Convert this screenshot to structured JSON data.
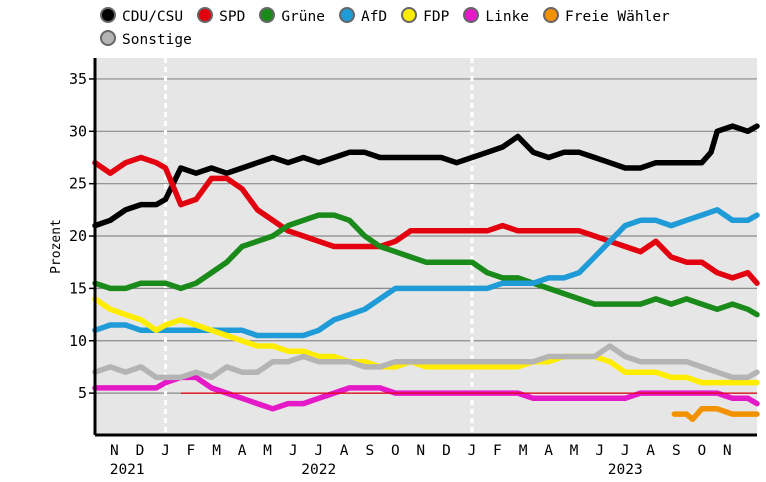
{
  "chart_data": {
    "type": "line",
    "ylabel": "Prozent",
    "ylim": [
      1,
      37
    ],
    "yticks": [
      5,
      10,
      15,
      20,
      25,
      30,
      35
    ],
    "threshold": 5,
    "x_range": [
      2021.77,
      2023.93
    ],
    "months": [
      {
        "label": "N",
        "x": 2021.833
      },
      {
        "label": "D",
        "x": 2021.917
      },
      {
        "label": "J",
        "x": 2022.0
      },
      {
        "label": "F",
        "x": 2022.083
      },
      {
        "label": "M",
        "x": 2022.167
      },
      {
        "label": "A",
        "x": 2022.25
      },
      {
        "label": "M",
        "x": 2022.333
      },
      {
        "label": "J",
        "x": 2022.417
      },
      {
        "label": "J",
        "x": 2022.5
      },
      {
        "label": "A",
        "x": 2022.583
      },
      {
        "label": "S",
        "x": 2022.667
      },
      {
        "label": "O",
        "x": 2022.75
      },
      {
        "label": "N",
        "x": 2022.833
      },
      {
        "label": "D",
        "x": 2022.917
      },
      {
        "label": "J",
        "x": 2023.0
      },
      {
        "label": "F",
        "x": 2023.083
      },
      {
        "label": "M",
        "x": 2023.167
      },
      {
        "label": "A",
        "x": 2023.25
      },
      {
        "label": "M",
        "x": 2023.333
      },
      {
        "label": "J",
        "x": 2023.417
      },
      {
        "label": "J",
        "x": 2023.5
      },
      {
        "label": "A",
        "x": 2023.583
      },
      {
        "label": "S",
        "x": 2023.667
      },
      {
        "label": "O",
        "x": 2023.75
      },
      {
        "label": "N",
        "x": 2023.833
      }
    ],
    "years": [
      {
        "label": "2021",
        "x": 2021.875
      },
      {
        "label": "2022",
        "x": 2022.5
      },
      {
        "label": "2023",
        "x": 2023.5
      }
    ],
    "year_separators": [
      1996.0,
      2022.0,
      2023.0
    ],
    "series": [
      {
        "name": "CDU/CSU",
        "color": "#000000",
        "x": [
          2021.77,
          2021.82,
          2021.87,
          2021.92,
          2021.97,
          2022.0,
          2022.05,
          2022.1,
          2022.15,
          2022.2,
          2022.25,
          2022.3,
          2022.35,
          2022.4,
          2022.45,
          2022.5,
          2022.55,
          2022.6,
          2022.65,
          2022.7,
          2022.75,
          2022.8,
          2022.85,
          2022.9,
          2022.95,
          2023.0,
          2023.05,
          2023.1,
          2023.15,
          2023.2,
          2023.25,
          2023.3,
          2023.35,
          2023.4,
          2023.45,
          2023.5,
          2023.55,
          2023.6,
          2023.65,
          2023.7,
          2023.75,
          2023.78,
          2023.8,
          2023.85,
          2023.9,
          2023.93
        ],
        "values": [
          21,
          21.5,
          22.5,
          23,
          23,
          23.5,
          26.5,
          26,
          26.5,
          26,
          26.5,
          27,
          27.5,
          27,
          27.5,
          27,
          27.5,
          28,
          28,
          27.5,
          27.5,
          27.5,
          27.5,
          27.5,
          27,
          27.5,
          28,
          28.5,
          29.5,
          28,
          27.5,
          28,
          28,
          27.5,
          27,
          26.5,
          26.5,
          27,
          27,
          27,
          27,
          28,
          30,
          30.5,
          30,
          30.5
        ]
      },
      {
        "name": "SPD",
        "color": "#e3000f",
        "x": [
          2021.77,
          2021.82,
          2021.87,
          2021.92,
          2021.97,
          2022.0,
          2022.05,
          2022.1,
          2022.15,
          2022.2,
          2022.25,
          2022.3,
          2022.35,
          2022.4,
          2022.45,
          2022.5,
          2022.55,
          2022.6,
          2022.65,
          2022.7,
          2022.75,
          2022.8,
          2022.85,
          2022.9,
          2022.95,
          2023.0,
          2023.05,
          2023.1,
          2023.15,
          2023.2,
          2023.25,
          2023.3,
          2023.35,
          2023.4,
          2023.45,
          2023.5,
          2023.55,
          2023.6,
          2023.65,
          2023.7,
          2023.75,
          2023.8,
          2023.85,
          2023.9,
          2023.93
        ],
        "values": [
          27,
          26,
          27,
          27.5,
          27,
          26.5,
          23,
          23.5,
          25.5,
          25.5,
          24.5,
          22.5,
          21.5,
          20.5,
          20,
          19.5,
          19,
          19,
          19,
          19,
          19.5,
          20.5,
          20.5,
          20.5,
          20.5,
          20.5,
          20.5,
          21,
          20.5,
          20.5,
          20.5,
          20.5,
          20.5,
          20,
          19.5,
          19,
          18.5,
          19.5,
          18,
          17.5,
          17.5,
          16.5,
          16,
          16.5,
          15.5
        ]
      },
      {
        "name": "Grüne",
        "color": "#1a8a1a",
        "x": [
          2021.77,
          2021.82,
          2021.87,
          2021.92,
          2021.97,
          2022.0,
          2022.05,
          2022.1,
          2022.15,
          2022.2,
          2022.25,
          2022.3,
          2022.35,
          2022.4,
          2022.45,
          2022.5,
          2022.55,
          2022.6,
          2022.65,
          2022.7,
          2022.75,
          2022.8,
          2022.85,
          2022.9,
          2022.95,
          2023.0,
          2023.05,
          2023.1,
          2023.15,
          2023.2,
          2023.25,
          2023.3,
          2023.35,
          2023.4,
          2023.45,
          2023.5,
          2023.55,
          2023.6,
          2023.65,
          2023.7,
          2023.75,
          2023.8,
          2023.85,
          2023.9,
          2023.93
        ],
        "values": [
          15.5,
          15,
          15,
          15.5,
          15.5,
          15.5,
          15,
          15.5,
          16.5,
          17.5,
          19,
          19.5,
          20,
          21,
          21.5,
          22,
          22,
          21.5,
          20,
          19,
          18.5,
          18,
          17.5,
          17.5,
          17.5,
          17.5,
          16.5,
          16,
          16,
          15.5,
          15,
          14.5,
          14,
          13.5,
          13.5,
          13.5,
          13.5,
          14,
          13.5,
          14,
          13.5,
          13,
          13.5,
          13,
          12.5
        ]
      },
      {
        "name": "AfD",
        "color": "#1f9bd7",
        "x": [
          2021.77,
          2021.82,
          2021.87,
          2021.92,
          2021.97,
          2022.0,
          2022.05,
          2022.1,
          2022.15,
          2022.2,
          2022.25,
          2022.3,
          2022.35,
          2022.4,
          2022.45,
          2022.5,
          2022.55,
          2022.6,
          2022.65,
          2022.7,
          2022.75,
          2022.8,
          2022.85,
          2022.9,
          2022.95,
          2023.0,
          2023.05,
          2023.1,
          2023.15,
          2023.2,
          2023.25,
          2023.3,
          2023.35,
          2023.4,
          2023.45,
          2023.5,
          2023.55,
          2023.6,
          2023.65,
          2023.7,
          2023.75,
          2023.8,
          2023.85,
          2023.9,
          2023.93
        ],
        "values": [
          11,
          11.5,
          11.5,
          11,
          11,
          11,
          11,
          11,
          11,
          11,
          11,
          10.5,
          10.5,
          10.5,
          10.5,
          11,
          12,
          12.5,
          13,
          14,
          15,
          15,
          15,
          15,
          15,
          15,
          15,
          15.5,
          15.5,
          15.5,
          16,
          16,
          16.5,
          18,
          19.5,
          21,
          21.5,
          21.5,
          21,
          21.5,
          22,
          22.5,
          21.5,
          21.5,
          22
        ]
      },
      {
        "name": "FDP",
        "color": "#ffed00",
        "x": [
          2021.77,
          2021.82,
          2021.87,
          2021.92,
          2021.97,
          2022.0,
          2022.05,
          2022.1,
          2022.15,
          2022.2,
          2022.25,
          2022.3,
          2022.35,
          2022.4,
          2022.45,
          2022.5,
          2022.55,
          2022.6,
          2022.65,
          2022.7,
          2022.75,
          2022.8,
          2022.85,
          2022.9,
          2022.95,
          2023.0,
          2023.05,
          2023.1,
          2023.15,
          2023.2,
          2023.25,
          2023.3,
          2023.35,
          2023.4,
          2023.45,
          2023.5,
          2023.55,
          2023.6,
          2023.65,
          2023.7,
          2023.75,
          2023.8,
          2023.85,
          2023.9,
          2023.93
        ],
        "values": [
          14,
          13,
          12.5,
          12,
          11,
          11.5,
          12,
          11.5,
          11,
          10.5,
          10,
          9.5,
          9.5,
          9,
          9,
          8.5,
          8.5,
          8,
          8,
          7.5,
          7.5,
          8,
          7.5,
          7.5,
          7.5,
          7.5,
          7.5,
          7.5,
          7.5,
          8,
          8,
          8.5,
          8.5,
          8.5,
          8,
          7,
          7,
          7,
          6.5,
          6.5,
          6,
          6,
          6,
          6,
          6
        ]
      },
      {
        "name": "Linke",
        "color": "#e619c8",
        "x": [
          2021.77,
          2021.82,
          2021.87,
          2021.92,
          2021.97,
          2022.0,
          2022.05,
          2022.1,
          2022.15,
          2022.2,
          2022.25,
          2022.3,
          2022.35,
          2022.4,
          2022.45,
          2022.5,
          2022.55,
          2022.6,
          2022.65,
          2022.7,
          2022.75,
          2022.8,
          2022.85,
          2022.9,
          2022.95,
          2023.0,
          2023.05,
          2023.1,
          2023.15,
          2023.2,
          2023.25,
          2023.3,
          2023.35,
          2023.4,
          2023.45,
          2023.5,
          2023.55,
          2023.6,
          2023.65,
          2023.7,
          2023.75,
          2023.8,
          2023.85,
          2023.9,
          2023.93
        ],
        "values": [
          5.5,
          5.5,
          5.5,
          5.5,
          5.5,
          6,
          6.5,
          6.5,
          5.5,
          5,
          4.5,
          4,
          3.5,
          4,
          4,
          4.5,
          5,
          5.5,
          5.5,
          5.5,
          5,
          5,
          5,
          5,
          5,
          5,
          5,
          5,
          5,
          4.5,
          4.5,
          4.5,
          4.5,
          4.5,
          4.5,
          4.5,
          5,
          5,
          5,
          5,
          5,
          5,
          4.5,
          4.5,
          4
        ]
      },
      {
        "name": "Freie Wähler",
        "color": "#f39200",
        "x": [
          2023.66,
          2023.7,
          2023.72,
          2023.75,
          2023.8,
          2023.85,
          2023.93
        ],
        "values": [
          3,
          3,
          2.5,
          3.5,
          3.5,
          3,
          3
        ]
      },
      {
        "name": "Sonstige",
        "color": "#b4b4b4",
        "x": [
          2021.77,
          2021.82,
          2021.87,
          2021.92,
          2021.97,
          2022.0,
          2022.05,
          2022.1,
          2022.15,
          2022.2,
          2022.25,
          2022.3,
          2022.35,
          2022.4,
          2022.45,
          2022.5,
          2022.55,
          2022.6,
          2022.65,
          2022.7,
          2022.75,
          2022.8,
          2022.85,
          2022.9,
          2022.95,
          2023.0,
          2023.05,
          2023.1,
          2023.15,
          2023.2,
          2023.25,
          2023.3,
          2023.35,
          2023.4,
          2023.45,
          2023.5,
          2023.55,
          2023.6,
          2023.65,
          2023.7,
          2023.75,
          2023.8,
          2023.85,
          2023.9,
          2023.93
        ],
        "values": [
          7,
          7.5,
          7,
          7.5,
          6.5,
          6.5,
          6.5,
          7,
          6.5,
          7.5,
          7,
          7,
          8,
          8,
          8.5,
          8,
          8,
          8,
          7.5,
          7.5,
          8,
          8,
          8,
          8,
          8,
          8,
          8,
          8,
          8,
          8,
          8.5,
          8.5,
          8.5,
          8.5,
          9.5,
          8.5,
          8,
          8,
          8,
          8,
          7.5,
          7,
          6.5,
          6.5,
          7
        ]
      }
    ]
  }
}
